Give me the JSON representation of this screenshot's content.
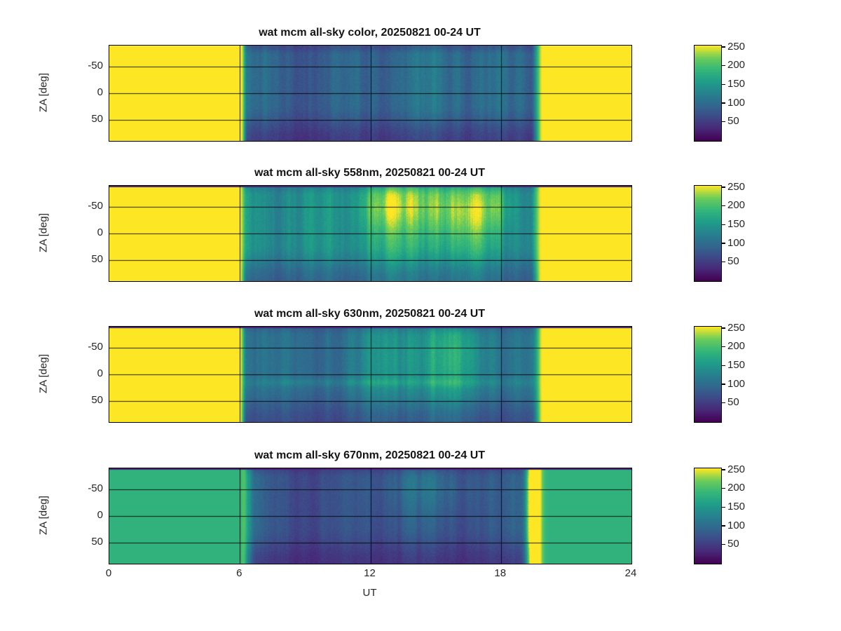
{
  "figure": {
    "background": "#ffffff",
    "axis_color": "#262626",
    "title_color": "#141414",
    "grid_color": "#000000"
  },
  "colormap": {
    "name": "viridis",
    "stops": [
      [
        0.0,
        68,
        1,
        84
      ],
      [
        0.125,
        72,
        40,
        120
      ],
      [
        0.25,
        62,
        74,
        137
      ],
      [
        0.375,
        49,
        104,
        142
      ],
      [
        0.5,
        38,
        130,
        142
      ],
      [
        0.625,
        31,
        158,
        137
      ],
      [
        0.75,
        53,
        183,
        121
      ],
      [
        0.875,
        109,
        205,
        89
      ],
      [
        1.0,
        253,
        231,
        37
      ]
    ]
  },
  "chart_data": [
    {
      "type": "heatmap",
      "title": "wat mcm all-sky color, 20250821 00-24 UT",
      "ylabel": "ZA [deg]",
      "x_range": [
        0,
        24
      ],
      "x_ticks": [
        0,
        6,
        12,
        18,
        24
      ],
      "y_range": [
        -90,
        90
      ],
      "y_ticks": [
        -50,
        0,
        50
      ],
      "value_range": [
        0,
        255
      ],
      "colorbar_ticks": [
        250,
        200,
        150,
        100,
        50
      ],
      "day_value": 255,
      "morning": {
        "t": 6.35,
        "width": 0.3,
        "spike": 0
      },
      "evening": {
        "t": 19.35,
        "width": 0.55,
        "spike": 0
      },
      "night_profile": {
        "t": [
          6.5,
          7.5,
          9,
          10.5,
          12,
          13.5,
          15,
          16.5,
          18,
          19
        ],
        "values": [
          100,
          88,
          82,
          88,
          98,
          105,
          108,
          105,
          98,
          92
        ]
      },
      "bottom_falloff": 0.45,
      "top_falloff": 0.25,
      "top_dark_rows": 0,
      "stripe_amp": 0.2,
      "noise_amp": 9,
      "hot_spots": []
    },
    {
      "type": "heatmap",
      "title": "wat mcm all-sky 558nm, 20250821 00-24 UT",
      "ylabel": "ZA [deg]",
      "x_range": [
        0,
        24
      ],
      "x_ticks": [
        0,
        6,
        12,
        18,
        24
      ],
      "y_range": [
        -90,
        90
      ],
      "y_ticks": [
        -50,
        0,
        50
      ],
      "value_range": [
        0,
        255
      ],
      "colorbar_ticks": [
        250,
        200,
        150,
        100,
        50
      ],
      "day_value": 255,
      "morning": {
        "t": 6.3,
        "width": 0.3,
        "spike": 0
      },
      "evening": {
        "t": 19.35,
        "width": 0.5,
        "spike": 0
      },
      "night_profile": {
        "t": [
          6.5,
          7.5,
          9,
          10.5,
          12,
          13.5,
          15,
          16.5,
          18,
          19
        ],
        "values": [
          150,
          145,
          138,
          150,
          168,
          178,
          182,
          175,
          158,
          142
        ]
      },
      "bottom_falloff": 0.35,
      "top_falloff": 0.15,
      "top_dark_rows": 2,
      "stripe_amp": 0.16,
      "noise_amp": 8,
      "hot_spots": [
        {
          "t": 12.5,
          "tw": 0.8,
          "za": 0.22,
          "zw": 0.18,
          "boost": 45
        },
        {
          "t": 14.5,
          "tw": 1.1,
          "za": 0.2,
          "zw": 0.22,
          "boost": 55
        },
        {
          "t": 16.5,
          "tw": 0.9,
          "za": 0.28,
          "zw": 0.2,
          "boost": 45
        },
        {
          "t": 17.8,
          "tw": 0.5,
          "za": 0.2,
          "zw": 0.18,
          "boost": 40
        }
      ]
    },
    {
      "type": "heatmap",
      "title": "wat mcm all-sky 630nm, 20250821 00-24 UT",
      "ylabel": "ZA [deg]",
      "x_range": [
        0,
        24
      ],
      "x_ticks": [
        0,
        6,
        12,
        18,
        24
      ],
      "y_range": [
        -90,
        90
      ],
      "y_ticks": [
        -50,
        0,
        50
      ],
      "value_range": [
        0,
        255
      ],
      "colorbar_ticks": [
        250,
        200,
        150,
        100,
        50
      ],
      "day_value": 255,
      "morning": {
        "t": 6.3,
        "width": 0.3,
        "spike": 0
      },
      "evening": {
        "t": 19.4,
        "width": 0.5,
        "spike": 0
      },
      "night_profile": {
        "t": [
          6.5,
          7.5,
          9,
          10.5,
          12,
          13.5,
          15,
          16.5,
          18,
          19
        ],
        "values": [
          120,
          105,
          98,
          108,
          125,
          138,
          142,
          132,
          115,
          102
        ]
      },
      "bottom_falloff": 0.35,
      "top_falloff": 0.15,
      "top_dark_rows": 2,
      "stripe_amp": 0.16,
      "noise_amp": 8,
      "hot_spots": [
        {
          "t": 14,
          "tw": 1.5,
          "za": 0.3,
          "zw": 0.28,
          "boost": 25
        },
        {
          "t": 16.5,
          "tw": 0.8,
          "za": 0.3,
          "zw": 0.25,
          "boost": 25
        },
        {
          "t": 12.5,
          "tw": 6,
          "za": 0.58,
          "zw": 0.03,
          "boost": 25
        }
      ]
    },
    {
      "type": "heatmap",
      "title": "wat mcm all-sky 670nm, 20250821 00-24 UT",
      "ylabel": "ZA [deg]",
      "xlabel": "UT",
      "x_range": [
        0,
        24
      ],
      "x_ticks": [
        0,
        6,
        12,
        18,
        24
      ],
      "y_range": [
        -90,
        90
      ],
      "y_ticks": [
        -50,
        0,
        50
      ],
      "value_range": [
        0,
        255
      ],
      "colorbar_ticks": [
        250,
        200,
        150,
        100,
        50
      ],
      "day_value": 185,
      "morning": {
        "t": 6.4,
        "width": 0.3,
        "spike": 70
      },
      "evening": {
        "t": 19.25,
        "width": 0.45,
        "spike": 240
      },
      "night_profile": {
        "t": [
          6.5,
          7.5,
          9,
          10.5,
          12,
          13.5,
          15,
          16.5,
          18,
          19
        ],
        "values": [
          88,
          76,
          68,
          70,
          76,
          80,
          78,
          74,
          78,
          85
        ]
      },
      "bottom_falloff": 0.4,
      "top_falloff": 0.2,
      "top_dark_rows": 2,
      "stripe_amp": 0.18,
      "noise_amp": 8,
      "hot_spots": [
        {
          "t": 14.5,
          "tw": 1.5,
          "za": 0.2,
          "zw": 0.2,
          "boost": 25
        }
      ]
    }
  ]
}
